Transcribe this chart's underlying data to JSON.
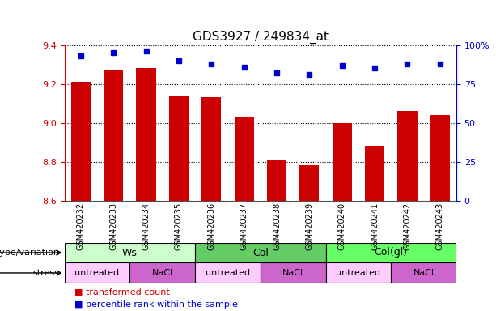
{
  "title": "GDS3927 / 249834_at",
  "samples": [
    "GSM420232",
    "GSM420233",
    "GSM420234",
    "GSM420235",
    "GSM420236",
    "GSM420237",
    "GSM420238",
    "GSM420239",
    "GSM420240",
    "GSM420241",
    "GSM420242",
    "GSM420243"
  ],
  "bar_values": [
    9.21,
    9.27,
    9.28,
    9.14,
    9.13,
    9.03,
    8.81,
    8.78,
    9.0,
    8.88,
    9.06,
    9.04
  ],
  "dot_values": [
    93,
    95,
    96,
    90,
    88,
    86,
    82,
    81,
    87,
    85,
    88,
    88
  ],
  "ylim_left": [
    8.6,
    9.4
  ],
  "ylim_right": [
    0,
    100
  ],
  "yticks_left": [
    8.6,
    8.8,
    9.0,
    9.2,
    9.4
  ],
  "yticks_right": [
    0,
    25,
    50,
    75,
    100
  ],
  "bar_color": "#cc0000",
  "dot_color": "#0000cc",
  "bar_width": 0.6,
  "genotype_groups": [
    {
      "label": "Ws",
      "start": 0,
      "end": 4,
      "color": "#ccffcc"
    },
    {
      "label": "Col",
      "start": 4,
      "end": 8,
      "color": "#66cc66"
    },
    {
      "label": "Col(gl)",
      "start": 8,
      "end": 12,
      "color": "#66ff66"
    }
  ],
  "stress_groups": [
    {
      "label": "untreated",
      "start": 0,
      "end": 2,
      "color": "#ffccff"
    },
    {
      "label": "NaCl",
      "start": 2,
      "end": 4,
      "color": "#cc66cc"
    },
    {
      "label": "untreated",
      "start": 4,
      "end": 6,
      "color": "#ffccff"
    },
    {
      "label": "NaCl",
      "start": 6,
      "end": 8,
      "color": "#cc66cc"
    },
    {
      "label": "untreated",
      "start": 8,
      "end": 10,
      "color": "#ffccff"
    },
    {
      "label": "NaCl",
      "start": 10,
      "end": 12,
      "color": "#cc66cc"
    }
  ],
  "genotype_label": "genotype/variation",
  "stress_label": "stress",
  "legend_bar": "transformed count",
  "legend_dot": "percentile rank within the sample",
  "left_axis_color": "#cc0000",
  "right_axis_color": "#0000cc",
  "grid_linestyle": "dotted"
}
